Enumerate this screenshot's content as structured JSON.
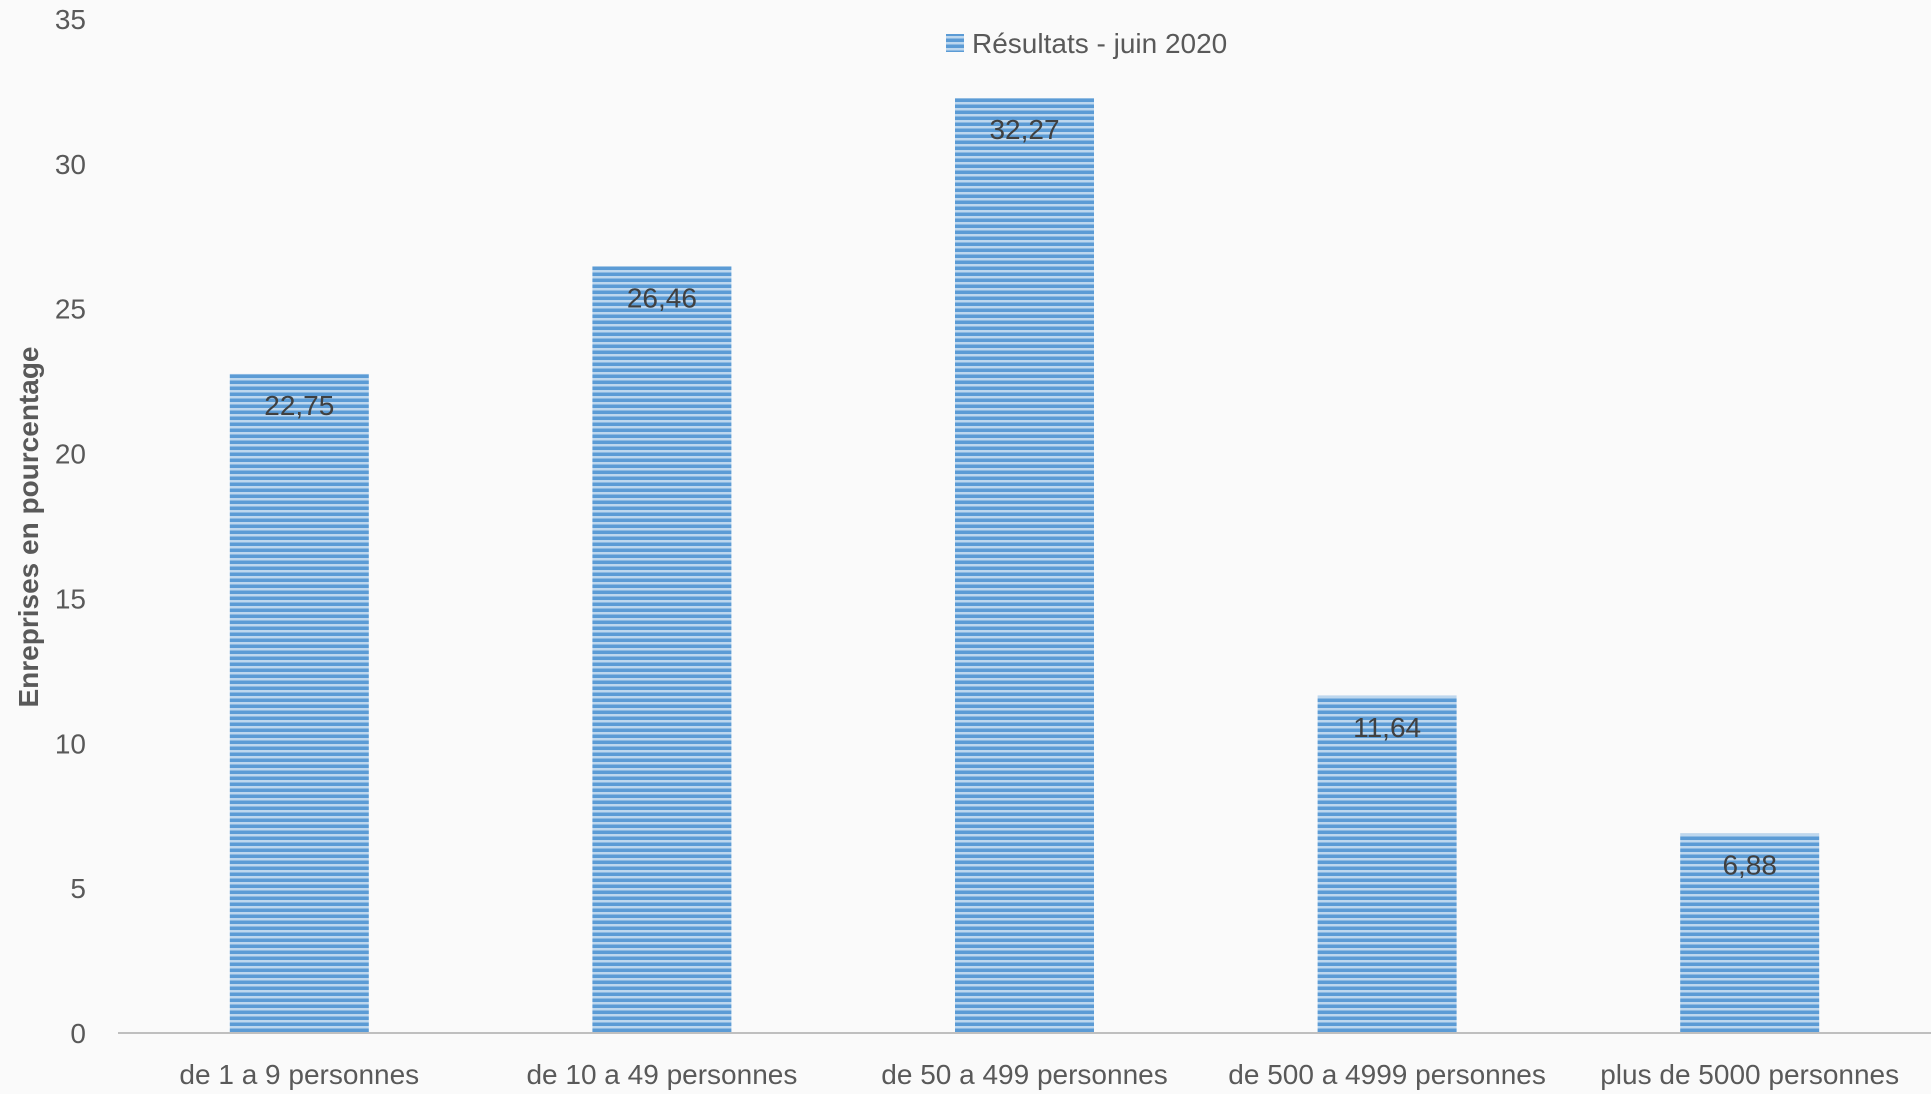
{
  "chart_data": {
    "type": "bar",
    "categories": [
      "de 1 a 9 personnes",
      "de 10 a 49 personnes",
      "de 50 a 499 personnes",
      "de 500 a 4999 personnes",
      "plus de 5000 personnes"
    ],
    "series": [
      {
        "name": "Résultats - juin 2020",
        "values": [
          22.75,
          26.46,
          32.27,
          11.64,
          6.88
        ],
        "color": "#5b9bd5"
      }
    ],
    "data_labels": [
      "22,75",
      "26,46",
      "32,27",
      "11,64",
      "6,88"
    ],
    "ylabel": "Enreprises en pourcentage",
    "xlabel": "",
    "ylim": [
      0,
      35
    ],
    "yticks": [
      0,
      5,
      10,
      15,
      20,
      25,
      30,
      35
    ],
    "legend_position": "top-center",
    "grid": false,
    "bar_pattern": "horizontal-stripes"
  }
}
